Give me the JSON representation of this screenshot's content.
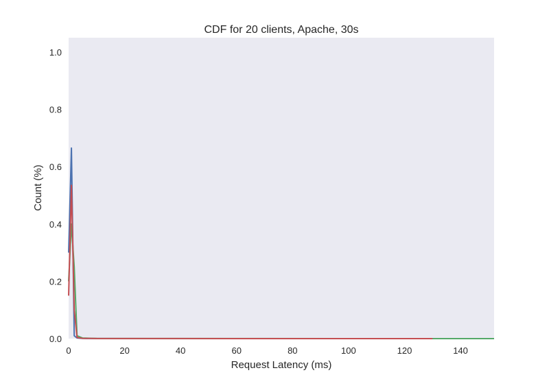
{
  "chart_data": {
    "type": "line",
    "title": "CDF for 20 clients, Apache, 30s",
    "xlabel": "Request Latency (ms)",
    "ylabel": "Count (%)",
    "xlim": [
      0,
      152
    ],
    "ylim": [
      0,
      1.05
    ],
    "xticks": [
      "0",
      "20",
      "40",
      "60",
      "80",
      "100",
      "120",
      "140"
    ],
    "yticks": [
      "0.0",
      "0.2",
      "0.4",
      "0.6",
      "0.8",
      "1.0"
    ],
    "grid": false,
    "background": "#EAEAF2",
    "series": [
      {
        "color": "#4C72B0",
        "x": [
          0,
          1,
          2,
          3,
          5,
          10,
          30,
          60,
          90,
          100
        ],
        "y": [
          0.3,
          0.665,
          0.01,
          0.002,
          0.0005,
          0.0002,
          0.0001,
          0.0001,
          0.0001,
          0.0001
        ]
      },
      {
        "color": "#55A868",
        "x": [
          0,
          1,
          2,
          3,
          5,
          10,
          30,
          60,
          100,
          130,
          152
        ],
        "y": [
          0.2,
          0.4,
          0.25,
          0.01,
          0.002,
          0.0005,
          0.0003,
          0.0002,
          0.0001,
          0.0001,
          0.0001
        ]
      },
      {
        "color": "#C44E52",
        "x": [
          0,
          1,
          2,
          3,
          5,
          10,
          30,
          60,
          100,
          130
        ],
        "y": [
          0.15,
          0.535,
          0.1,
          0.004,
          0.001,
          0.0003,
          0.0002,
          0.0001,
          0.0001,
          0.0001
        ]
      }
    ]
  }
}
